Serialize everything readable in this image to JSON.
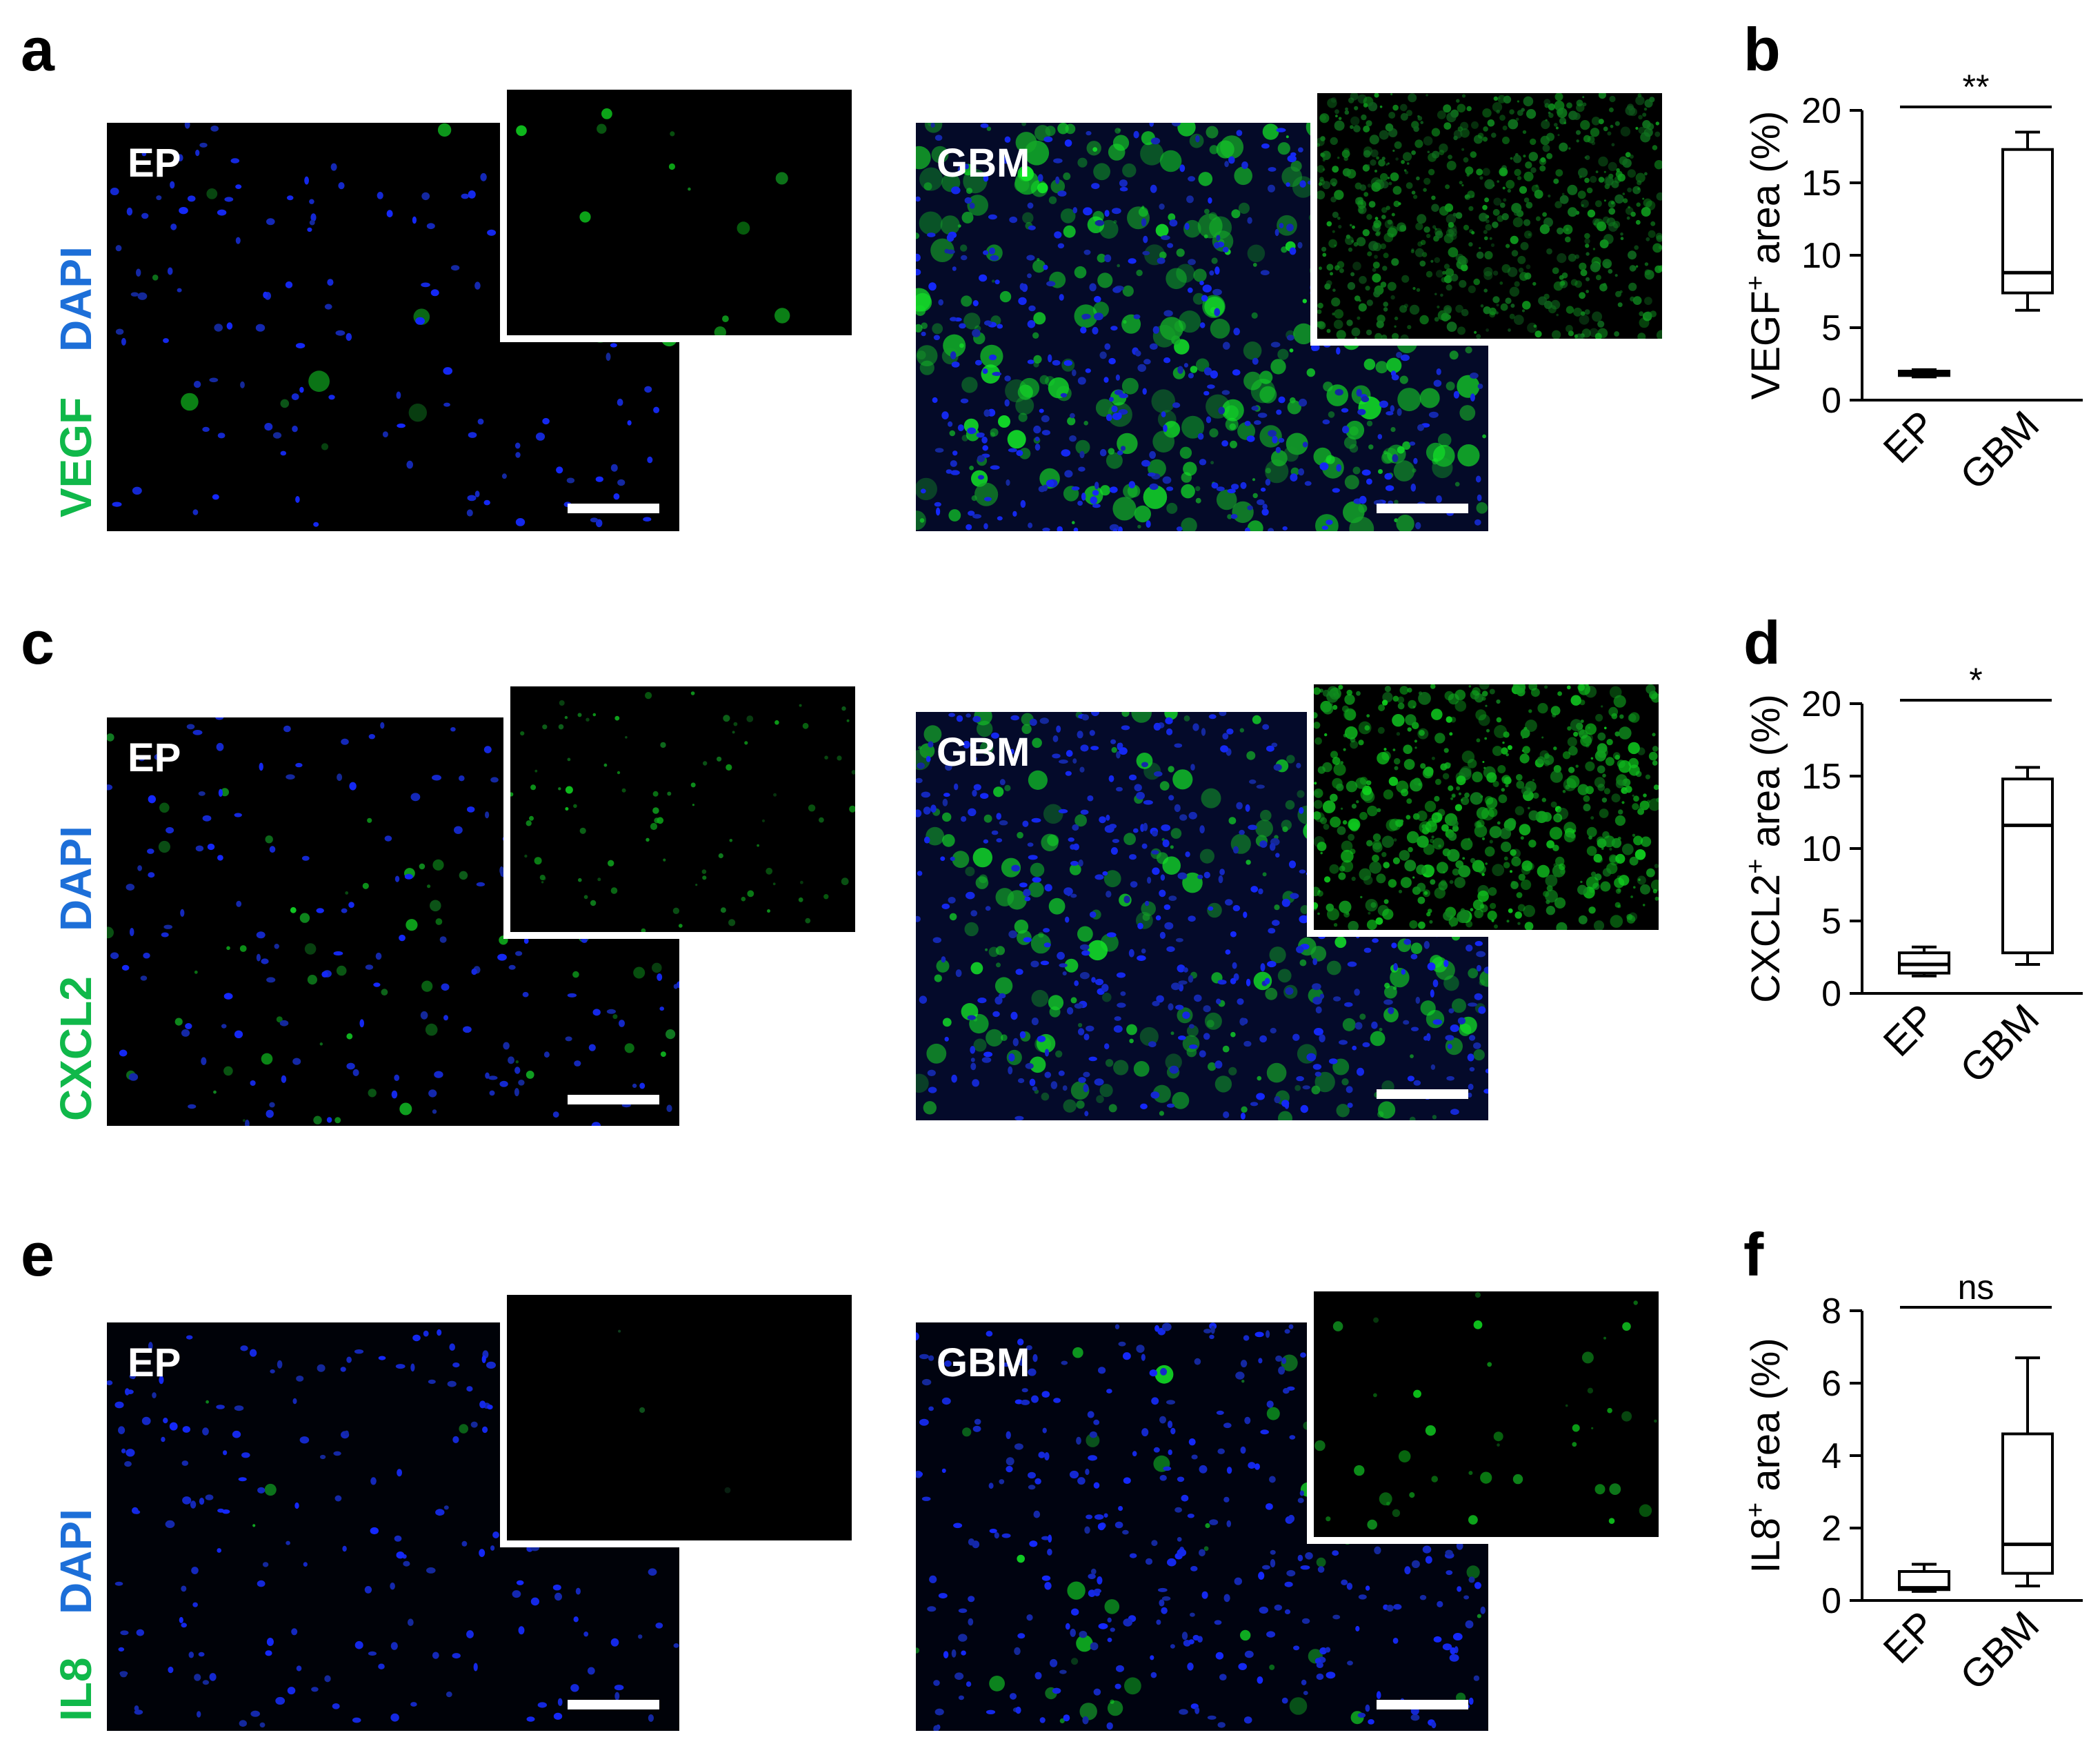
{
  "panels": [
    {
      "letter": "a"
    },
    {
      "letter": "b"
    },
    {
      "letter": "c"
    },
    {
      "letter": "d"
    },
    {
      "letter": "e"
    },
    {
      "letter": "f"
    }
  ],
  "rows": [
    {
      "stain": {
        "counter": "DAPI",
        "marker": "VEGF"
      },
      "images": [
        {
          "label": "EP"
        },
        {
          "label": "GBM"
        }
      ]
    },
    {
      "stain": {
        "counter": "DAPI",
        "marker": "CXCL2"
      },
      "images": [
        {
          "label": "EP"
        },
        {
          "label": "GBM"
        }
      ]
    },
    {
      "stain": {
        "counter": "DAPI",
        "marker": "IL8"
      },
      "images": [
        {
          "label": "EP"
        },
        {
          "label": "GBM"
        }
      ]
    }
  ],
  "colors": {
    "dapi": "#1d6fd8",
    "marker": "#10b84a",
    "axis": "#000000"
  },
  "chart_data": [
    {
      "type": "box",
      "panel": "b",
      "ylabel_main": "VEGF",
      "ylabel_sup": "+",
      "ylabel_rest": " area (%)",
      "categories": [
        "EP",
        "GBM"
      ],
      "ylim": [
        0,
        20
      ],
      "yticks": [
        0,
        5,
        10,
        15,
        20
      ],
      "boxes": [
        {
          "min": 1.6,
          "q1": 1.7,
          "median": 1.8,
          "q3": 2.0,
          "max": 2.1
        },
        {
          "min": 6.2,
          "q1": 7.4,
          "median": 8.8,
          "q3": 17.3,
          "max": 18.5
        }
      ],
      "significance": "**"
    },
    {
      "type": "box",
      "panel": "d",
      "ylabel_main": "CXCL2",
      "ylabel_sup": "+",
      "ylabel_rest": " area (%)",
      "categories": [
        "EP",
        "GBM"
      ],
      "ylim": [
        0,
        20
      ],
      "yticks": [
        0,
        5,
        10,
        15,
        20
      ],
      "boxes": [
        {
          "min": 1.2,
          "q1": 1.4,
          "median": 2.0,
          "q3": 2.8,
          "max": 3.2
        },
        {
          "min": 2.0,
          "q1": 2.8,
          "median": 11.6,
          "q3": 14.8,
          "max": 15.6
        }
      ],
      "significance": "*"
    },
    {
      "type": "box",
      "panel": "f",
      "ylabel_main": "IL8",
      "ylabel_sup": "+",
      "ylabel_rest": " area (%)",
      "categories": [
        "EP",
        "GBM"
      ],
      "ylim": [
        0,
        8
      ],
      "yticks": [
        0,
        2,
        4,
        6,
        8
      ],
      "boxes": [
        {
          "min": 0.25,
          "q1": 0.3,
          "median": 0.35,
          "q3": 0.8,
          "max": 1.0
        },
        {
          "min": 0.4,
          "q1": 0.75,
          "median": 1.55,
          "q3": 4.6,
          "max": 6.7
        }
      ],
      "significance": "ns"
    }
  ]
}
